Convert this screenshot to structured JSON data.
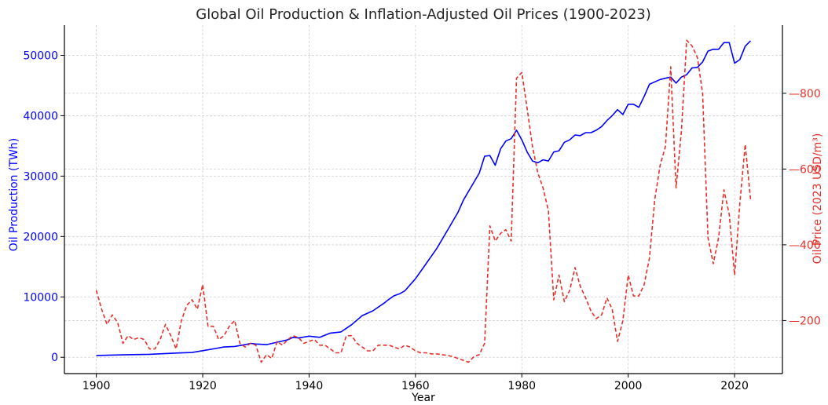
{
  "chart_data": {
    "type": "line",
    "title": "Global Oil Production & Inflation-Adjusted Oil Prices (1900-2023)",
    "xlabel": "Year",
    "ylabel_left": "Oil Production (TWh)",
    "ylabel_right": "Oil Price (2023 USD/m³)",
    "xlim": [
      1894,
      2029
    ],
    "ylim_left": [
      -2700,
      55000
    ],
    "ylim_right": [
      60,
      980
    ],
    "x_ticks": [
      1900,
      1920,
      1940,
      1960,
      1980,
      2000,
      2020
    ],
    "y_left_ticks": [
      0,
      10000,
      20000,
      30000,
      40000,
      50000
    ],
    "y_right_ticks": [
      200,
      400,
      600,
      800
    ],
    "grid": true,
    "colors": {
      "production": "#0000ff",
      "price": "#e8302a",
      "axis": "#000000",
      "grid": "#d0d0d0"
    },
    "series": [
      {
        "name": "Oil Production (TWh)",
        "axis": "left",
        "style": "solid",
        "x": [
          1900,
          1905,
          1910,
          1915,
          1918,
          1920,
          1922,
          1924,
          1926,
          1928,
          1929,
          1930,
          1932,
          1934,
          1936,
          1937,
          1938,
          1940,
          1942,
          1944,
          1946,
          1947,
          1948,
          1950,
          1952,
          1954,
          1955,
          1956,
          1957,
          1958,
          1960,
          1962,
          1964,
          1966,
          1968,
          1969,
          1970,
          1971,
          1972,
          1973,
          1974,
          1975,
          1976,
          1977,
          1978,
          1979,
          1980,
          1981,
          1982,
          1983,
          1984,
          1985,
          1986,
          1987,
          1988,
          1989,
          1990,
          1991,
          1992,
          1993,
          1994,
          1995,
          1996,
          1997,
          1998,
          1999,
          2000,
          2001,
          2002,
          2003,
          2004,
          2005,
          2006,
          2007,
          2008,
          2009,
          2010,
          2011,
          2012,
          2013,
          2014,
          2015,
          2016,
          2017,
          2018,
          2019,
          2020,
          2021,
          2022,
          2023
        ],
        "values": [
          300,
          400,
          500,
          700,
          800,
          1100,
          1400,
          1700,
          1800,
          2100,
          2300,
          2200,
          2100,
          2500,
          2900,
          3300,
          3200,
          3500,
          3300,
          4000,
          4200,
          4800,
          5400,
          6900,
          7700,
          8900,
          9600,
          10200,
          10500,
          11000,
          13000,
          15500,
          18000,
          21000,
          24000,
          26000,
          27500,
          29000,
          30500,
          33300,
          33400,
          31800,
          34500,
          35800,
          36200,
          37600,
          36000,
          34000,
          32500,
          32200,
          32700,
          32500,
          34000,
          34200,
          35600,
          36000,
          36800,
          36700,
          37200,
          37200,
          37600,
          38200,
          39200,
          40000,
          41000,
          40200,
          41900,
          41900,
          41400,
          43200,
          45200,
          45600,
          46000,
          46200,
          46400,
          45400,
          46400,
          46800,
          47900,
          48000,
          48900,
          50700,
          51000,
          51000,
          52100,
          52100,
          48700,
          49300,
          51500,
          52400
        ]
      },
      {
        "name": "Oil Price (2023 USD/m³)",
        "axis": "right",
        "style": "dashed",
        "x": [
          1900,
          1901,
          1902,
          1903,
          1904,
          1905,
          1906,
          1907,
          1908,
          1909,
          1910,
          1911,
          1912,
          1913,
          1914,
          1915,
          1916,
          1917,
          1918,
          1919,
          1920,
          1921,
          1922,
          1923,
          1924,
          1925,
          1926,
          1927,
          1928,
          1929,
          1930,
          1931,
          1932,
          1933,
          1934,
          1935,
          1936,
          1937,
          1938,
          1939,
          1940,
          1941,
          1942,
          1943,
          1944,
          1945,
          1946,
          1947,
          1948,
          1949,
          1950,
          1951,
          1952,
          1953,
          1954,
          1955,
          1956,
          1957,
          1958,
          1959,
          1960,
          1961,
          1962,
          1963,
          1964,
          1965,
          1966,
          1967,
          1968,
          1969,
          1970,
          1971,
          1972,
          1973,
          1974,
          1975,
          1976,
          1977,
          1978,
          1979,
          1980,
          1981,
          1982,
          1983,
          1984,
          1985,
          1986,
          1987,
          1988,
          1989,
          1990,
          1991,
          1992,
          1993,
          1994,
          1995,
          1996,
          1997,
          1998,
          1999,
          2000,
          2001,
          2002,
          2003,
          2004,
          2005,
          2006,
          2007,
          2008,
          2009,
          2010,
          2011,
          2012,
          2013,
          2014,
          2015,
          2016,
          2017,
          2018,
          2019,
          2020,
          2021,
          2022,
          2023
        ],
        "values": [
          280,
          230,
          190,
          215,
          195,
          140,
          160,
          150,
          155,
          150,
          125,
          125,
          150,
          190,
          160,
          125,
          200,
          240,
          255,
          230,
          295,
          185,
          185,
          150,
          160,
          185,
          200,
          140,
          130,
          140,
          135,
          90,
          110,
          100,
          145,
          135,
          150,
          160,
          155,
          140,
          145,
          150,
          135,
          135,
          125,
          115,
          115,
          160,
          160,
          140,
          130,
          120,
          120,
          135,
          135,
          135,
          130,
          125,
          135,
          130,
          120,
          115,
          115,
          112,
          112,
          110,
          108,
          105,
          100,
          95,
          90,
          105,
          110,
          140,
          450,
          410,
          430,
          440,
          410,
          840,
          855,
          760,
          660,
          590,
          550,
          490,
          255,
          320,
          250,
          280,
          340,
          290,
          260,
          225,
          205,
          215,
          260,
          230,
          145,
          200,
          320,
          265,
          265,
          295,
          365,
          520,
          610,
          660,
          870,
          550,
          700,
          940,
          925,
          895,
          800,
          420,
          350,
          420,
          545,
          480,
          320,
          510,
          665,
          520
        ]
      }
    ]
  }
}
